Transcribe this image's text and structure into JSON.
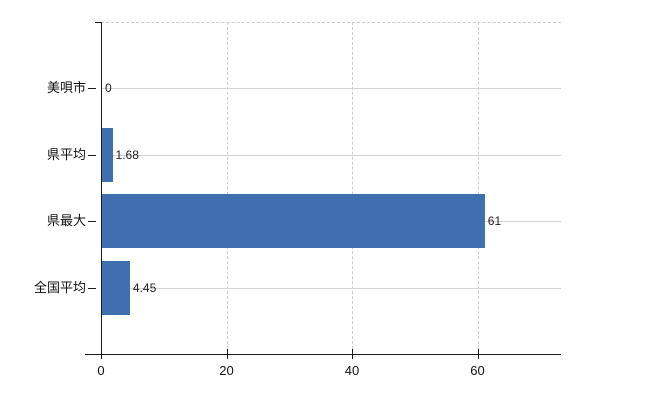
{
  "chart_data": {
    "type": "bar",
    "orientation": "horizontal",
    "title": "",
    "categories": [
      "美唄市",
      "県平均",
      "県最大",
      "全国平均"
    ],
    "values": [
      0,
      1.68,
      61,
      4.45
    ],
    "value_labels": [
      "0",
      "1.68",
      "61",
      "4.45"
    ],
    "x_ticks": [
      0,
      20,
      40,
      60
    ],
    "x_tick_labels": [
      "0",
      "20",
      "40",
      "60"
    ],
    "xlim": [
      0,
      73.3
    ],
    "grid": true,
    "legend": false,
    "bar_color": "#3f6fae",
    "axis_color": "#1a1a1a",
    "hgrid_color": "#d4d4d4",
    "vgrid_color": "#cccccc"
  }
}
